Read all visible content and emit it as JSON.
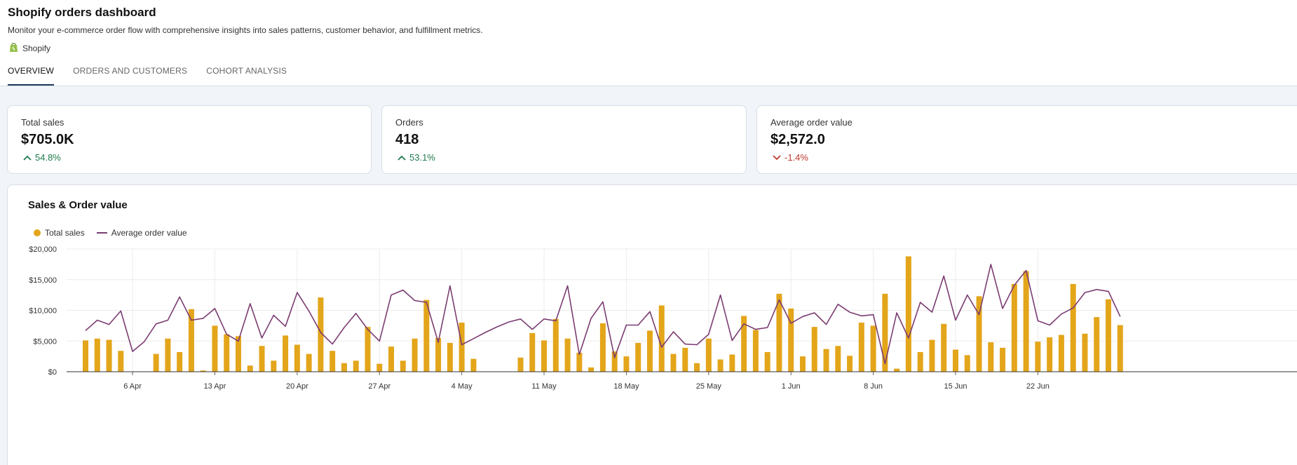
{
  "header": {
    "title": "Shopify orders dashboard",
    "description": "Monitor your e-commerce order flow with comprehensive insights into sales patterns, customer behavior, and fulfillment metrics.",
    "source_name": "Shopify",
    "source_icon": "shopify-bag-icon"
  },
  "tabs": [
    {
      "label": "OVERVIEW",
      "active": true
    },
    {
      "label": "ORDERS AND CUSTOMERS",
      "active": false
    },
    {
      "label": "COHORT ANALYSIS",
      "active": false
    }
  ],
  "kpis": [
    {
      "label": "Total sales",
      "value": "$705.0K",
      "delta": "54.8%",
      "direction": "up",
      "color": "#1f7a4d"
    },
    {
      "label": "Orders",
      "value": "418",
      "delta": "53.1%",
      "direction": "up",
      "color": "#1f7a4d"
    },
    {
      "label": "Average order value",
      "value": "$2,572.0",
      "delta": "-1.4%",
      "direction": "down",
      "color": "#c0392b"
    }
  ],
  "colors": {
    "bar": "#e3a51a",
    "line": "#7b3c72",
    "tab_active": "#1c3b5a"
  },
  "chart_data": {
    "type": "bar+line",
    "title": "Sales & Order value",
    "x_start": "2025-04-02",
    "xticks": [
      "6 Apr",
      "13 Apr",
      "20 Apr",
      "27 Apr",
      "4 May",
      "11 May",
      "18 May",
      "25 May",
      "1 Jun",
      "8 Jun",
      "15 Jun",
      "22 Jun"
    ],
    "yticks": [
      "$0",
      "$5,000",
      "$10,000",
      "$15,000",
      "$20,000"
    ],
    "ylim": [
      0,
      20000
    ],
    "grid": true,
    "legend_position": "top-left",
    "series": [
      {
        "name": "Total sales",
        "kind": "bar",
        "values": [
          5100,
          5400,
          5200,
          3400,
          null,
          null,
          2900,
          5400,
          3200,
          10200,
          200,
          7500,
          6100,
          5800,
          1000,
          4200,
          1800,
          5900,
          4400,
          2900,
          12100,
          3400,
          1400,
          1800,
          7300,
          1300,
          4100,
          1800,
          5400,
          11700,
          5500,
          4700,
          8000,
          2100,
          null,
          null,
          null,
          2300,
          6300,
          5100,
          8600,
          5400,
          3100,
          700,
          7900,
          3300,
          2500,
          4700,
          6700,
          10800,
          2900,
          3900,
          1400,
          5400,
          2000,
          2800,
          9100,
          6800,
          3200,
          12700,
          10300,
          2500,
          7300,
          3700,
          4200,
          2600,
          8000,
          7500,
          12700,
          500,
          18800,
          3200,
          5200,
          7800,
          3600,
          2700,
          12300,
          4800,
          3900,
          14300,
          16400,
          4900,
          5600,
          6000,
          14300,
          6200,
          8900,
          11800,
          7600
        ]
      },
      {
        "name": "Average order value",
        "kind": "line",
        "values": [
          6700,
          8400,
          7700,
          9900,
          3300,
          4900,
          7800,
          8400,
          12200,
          8400,
          8700,
          10300,
          6100,
          5000,
          11100,
          5500,
          9200,
          7400,
          12900,
          9900,
          6400,
          4500,
          7200,
          9500,
          6900,
          5000,
          12500,
          13300,
          11600,
          11300,
          4800,
          14000,
          4400,
          5400,
          6400,
          7300,
          8100,
          8600,
          6900,
          8600,
          8300,
          14000,
          2800,
          8700,
          11400,
          2300,
          7600,
          7600,
          9800,
          4000,
          6500,
          4500,
          4400,
          6100,
          12500,
          5100,
          7800,
          6900,
          7200,
          11700,
          7900,
          9000,
          9600,
          7700,
          11000,
          9700,
          9100,
          9300,
          1300,
          9600,
          5500,
          11300,
          9700,
          15600,
          8400,
          12500,
          9300,
          17500,
          10300,
          14100,
          16500,
          8300,
          7600,
          9400,
          10400,
          12900,
          13400,
          13100,
          9000
        ]
      }
    ]
  }
}
